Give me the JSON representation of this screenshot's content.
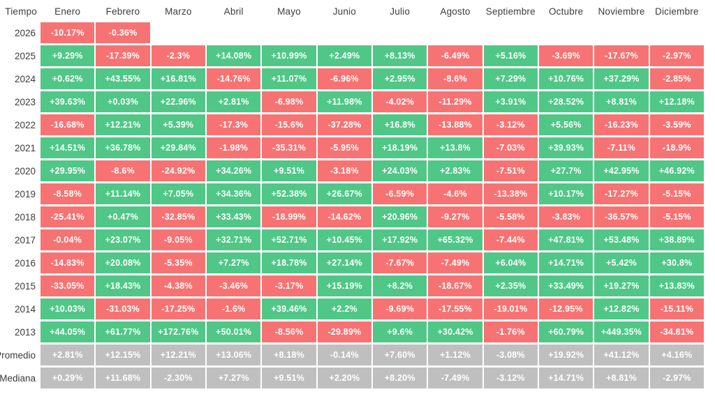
{
  "header": {
    "time_label": "Tiempo"
  },
  "chart_data": {
    "type": "heatmap",
    "unit": "%",
    "description_layout": "monthly-returns-by-year",
    "categories": [
      "Enero",
      "Febrero",
      "Marzo",
      "Abril",
      "Mayo",
      "Junio",
      "Julio",
      "Agosto",
      "Septiembre",
      "Octubre",
      "Noviembre",
      "Diciembre"
    ],
    "rows": [
      {
        "label": "2026",
        "type": "year",
        "values": [
          "-10.17%",
          "-0.36%",
          "",
          "",
          "",
          "",
          "",
          "",
          "",
          "",
          "",
          ""
        ]
      },
      {
        "label": "2025",
        "type": "year",
        "values": [
          "+9.29%",
          "-17.39%",
          "-2.3%",
          "+14.08%",
          "+10.99%",
          "+2.49%",
          "+8.13%",
          "-6.49%",
          "+5.16%",
          "-3.69%",
          "-17.67%",
          "-2.97%"
        ]
      },
      {
        "label": "2024",
        "type": "year",
        "values": [
          "+0.62%",
          "+43.55%",
          "+16.81%",
          "-14.76%",
          "+11.07%",
          "-6.96%",
          "+2.95%",
          "-8.6%",
          "+7.29%",
          "+10.76%",
          "+37.29%",
          "-2.85%"
        ]
      },
      {
        "label": "2023",
        "type": "year",
        "values": [
          "+39.63%",
          "+0.03%",
          "+22.96%",
          "+2.81%",
          "-6.98%",
          "+11.98%",
          "-4.02%",
          "-11.29%",
          "+3.91%",
          "+28.52%",
          "+8.81%",
          "+12.18%"
        ]
      },
      {
        "label": "2022",
        "type": "year",
        "values": [
          "-16.68%",
          "+12.21%",
          "+5.39%",
          "-17.3%",
          "-15.6%",
          "-37.28%",
          "+16.8%",
          "-13.88%",
          "-3.12%",
          "+5.56%",
          "-16.23%",
          "-3.59%"
        ]
      },
      {
        "label": "2021",
        "type": "year",
        "values": [
          "+14.51%",
          "+36.78%",
          "+29.84%",
          "-1.98%",
          "-35.31%",
          "-5.95%",
          "+18.19%",
          "+13.8%",
          "-7.03%",
          "+39.93%",
          "-7.11%",
          "-18.9%"
        ]
      },
      {
        "label": "2020",
        "type": "year",
        "values": [
          "+29.95%",
          "-8.6%",
          "-24.92%",
          "+34.26%",
          "+9.51%",
          "-3.18%",
          "+24.03%",
          "+2.83%",
          "-7.51%",
          "+27.7%",
          "+42.95%",
          "+46.92%"
        ]
      },
      {
        "label": "2019",
        "type": "year",
        "values": [
          "-8.58%",
          "+11.14%",
          "+7.05%",
          "+34.36%",
          "+52.38%",
          "+26.67%",
          "-6.59%",
          "-4.6%",
          "-13.38%",
          "+10.17%",
          "-17.27%",
          "-5.15%"
        ]
      },
      {
        "label": "2018",
        "type": "year",
        "values": [
          "-25.41%",
          "+0.47%",
          "-32.85%",
          "+33.43%",
          "-18.99%",
          "-14.62%",
          "+20.96%",
          "-9.27%",
          "-5.58%",
          "-3.83%",
          "-36.57%",
          "-5.15%"
        ]
      },
      {
        "label": "2017",
        "type": "year",
        "values": [
          "-0.04%",
          "+23.07%",
          "-9.05%",
          "+32.71%",
          "+52.71%",
          "+10.45%",
          "+17.92%",
          "+65.32%",
          "-7.44%",
          "+47.81%",
          "+53.48%",
          "+38.89%"
        ]
      },
      {
        "label": "2016",
        "type": "year",
        "values": [
          "-14.83%",
          "+20.08%",
          "-5.35%",
          "+7.27%",
          "+18.78%",
          "+27.14%",
          "-7.67%",
          "-7.49%",
          "+6.04%",
          "+14.71%",
          "+5.42%",
          "+30.8%"
        ]
      },
      {
        "label": "2015",
        "type": "year",
        "values": [
          "-33.05%",
          "+18.43%",
          "-4.38%",
          "-3.46%",
          "-3.17%",
          "+15.19%",
          "+8.2%",
          "-18.67%",
          "+2.35%",
          "+33.49%",
          "+19.27%",
          "+13.83%"
        ]
      },
      {
        "label": "2014",
        "type": "year",
        "values": [
          "+10.03%",
          "-31.03%",
          "-17.25%",
          "-1.6%",
          "+39.46%",
          "+2.2%",
          "-9.69%",
          "-17.55%",
          "-19.01%",
          "-12.95%",
          "+12.82%",
          "-15.11%"
        ]
      },
      {
        "label": "2013",
        "type": "year",
        "values": [
          "+44.05%",
          "+61.77%",
          "+172.76%",
          "+50.01%",
          "-8.56%",
          "-29.89%",
          "+9.6%",
          "+30.42%",
          "-1.76%",
          "+60.79%",
          "+449.35%",
          "-34.81%"
        ]
      },
      {
        "label": "Promedio",
        "type": "summary",
        "values": [
          "+2.81%",
          "+12.15%",
          "+12.21%",
          "+13.06%",
          "+8.18%",
          "-0.14%",
          "+7.60%",
          "+1.12%",
          "-3.08%",
          "+19.92%",
          "+41.12%",
          "+4.16%"
        ]
      },
      {
        "label": "Mediana",
        "type": "summary",
        "values": [
          "+0.29%",
          "+11.68%",
          "-2.30%",
          "+7.27%",
          "+9.51%",
          "+2.20%",
          "+8.20%",
          "-7.49%",
          "-3.12%",
          "+14.71%",
          "+8.81%",
          "-2.97%"
        ]
      }
    ],
    "colors": {
      "positive": "#50C787",
      "negative": "#F77373",
      "summary": "#BFBFBF",
      "cell_text": "#FFFFFF",
      "label_text": "#3C3C3C"
    },
    "legend_position": "none",
    "grid": "white-gaps"
  }
}
